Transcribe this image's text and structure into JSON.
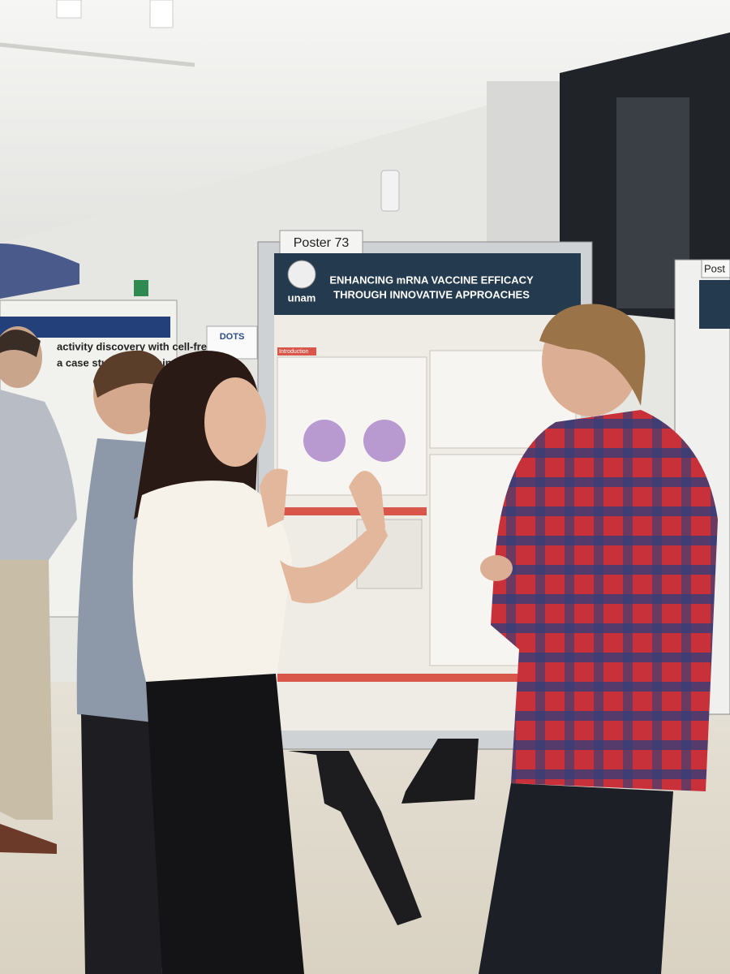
{
  "center_poster": {
    "number": "Poster 73",
    "title_lines": [
      "ENHANCING mRNA VACCINE EFFICACY",
      "THROUGH INNOVATIVE APPROACHES"
    ],
    "logo": "unam",
    "section": "Introduction"
  },
  "left_poster": {
    "lines": [
      "activity discovery with cell-free",
      "a case study on kavain biosynth"
    ]
  },
  "back_sign": {
    "logo": "DOTS"
  },
  "right_poster": {
    "number": "Post"
  }
}
